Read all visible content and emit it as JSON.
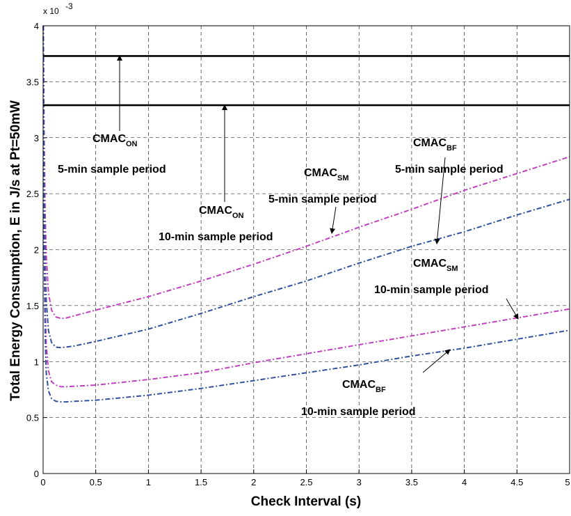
{
  "chart_data": {
    "type": "line",
    "title": "",
    "xlabel": "Check Interval (s)",
    "ylabel": "Total Energy Consumption, E in J/s at Pt=50mW",
    "y_multiplier": "x 10",
    "y_multiplier_exp": "-3",
    "xlim": [
      0,
      5
    ],
    "ylim": [
      0,
      4
    ],
    "grid": true,
    "x_ticks": [
      "0",
      "0.5",
      "1",
      "1.5",
      "2",
      "2.5",
      "3",
      "3.5",
      "4",
      "4.5",
      "5"
    ],
    "y_ticks": [
      "0",
      "0.5",
      "1",
      "1.5",
      "2",
      "2.5",
      "3",
      "3.5",
      "4"
    ],
    "series": [
      {
        "label": "CMAC_ON 5-min sample period",
        "color": "#000000",
        "style": "solid",
        "x": [
          0,
          5
        ],
        "y": [
          3.73,
          3.73
        ]
      },
      {
        "label": "CMAC_ON 10-min sample period",
        "color": "#000000",
        "style": "solid",
        "x": [
          0,
          5
        ],
        "y": [
          3.29,
          3.29
        ]
      },
      {
        "label": "CMAC_SM 5-min sample period",
        "color": "#c040c0",
        "style": "dashdot",
        "x": [
          0.002,
          0.01,
          0.02,
          0.03,
          0.05,
          0.08,
          0.12,
          0.17,
          0.22,
          0.3,
          0.5,
          1,
          1.5,
          2,
          2.5,
          3,
          3.5,
          4,
          4.5,
          5
        ],
        "y": [
          4.0,
          3.0,
          2.3,
          1.95,
          1.62,
          1.46,
          1.4,
          1.385,
          1.39,
          1.41,
          1.46,
          1.58,
          1.72,
          1.87,
          2.03,
          2.2,
          2.36,
          2.53,
          2.68,
          2.83
        ]
      },
      {
        "label": "CMAC_BF 5-min sample period",
        "color": "#3050a0",
        "style": "dashdot",
        "x": [
          0.002,
          0.01,
          0.02,
          0.03,
          0.05,
          0.08,
          0.12,
          0.17,
          0.22,
          0.3,
          0.5,
          1,
          1.5,
          2,
          2.5,
          3,
          3.5,
          4,
          4.5,
          5
        ],
        "y": [
          4.0,
          2.6,
          1.9,
          1.55,
          1.28,
          1.17,
          1.13,
          1.125,
          1.13,
          1.14,
          1.18,
          1.29,
          1.43,
          1.58,
          1.72,
          1.88,
          2.03,
          2.16,
          2.31,
          2.45
        ]
      },
      {
        "label": "CMAC_SM 10-min sample period",
        "color": "#c040c0",
        "style": "dashdot",
        "x": [
          0.002,
          0.01,
          0.02,
          0.03,
          0.05,
          0.08,
          0.12,
          0.17,
          0.22,
          0.3,
          0.5,
          1,
          1.5,
          2,
          2.5,
          3,
          3.5,
          4,
          4.5,
          5
        ],
        "y": [
          4.0,
          2.3,
          1.5,
          1.15,
          0.92,
          0.82,
          0.79,
          0.775,
          0.775,
          0.78,
          0.79,
          0.84,
          0.9,
          0.99,
          1.07,
          1.15,
          1.23,
          1.31,
          1.39,
          1.47
        ]
      },
      {
        "label": "CMAC_BF 10-min sample period",
        "color": "#3050a0",
        "style": "dashdot",
        "x": [
          0.002,
          0.01,
          0.02,
          0.03,
          0.05,
          0.08,
          0.12,
          0.17,
          0.22,
          0.3,
          0.5,
          1,
          1.5,
          2,
          2.5,
          3,
          3.5,
          4,
          4.5,
          5
        ],
        "y": [
          4.0,
          2.0,
          1.2,
          0.9,
          0.74,
          0.67,
          0.645,
          0.64,
          0.64,
          0.645,
          0.655,
          0.7,
          0.76,
          0.83,
          0.9,
          0.97,
          1.05,
          1.12,
          1.2,
          1.28
        ]
      }
    ],
    "annotations": [
      {
        "main": "CMAC",
        "sub": "ON",
        "line2": "5-min sample period"
      },
      {
        "main": "CMAC",
        "sub": "ON",
        "line2": "10-min sample period"
      },
      {
        "main": "CMAC",
        "sub": "SM",
        "line2": "5-min sample period"
      },
      {
        "main": "CMAC",
        "sub": "BF",
        "line2": "5-min sample period"
      },
      {
        "main": "CMAC",
        "sub": "SM",
        "line2": "10-min sample period"
      },
      {
        "main": "CMAC",
        "sub": "BF",
        "line2": "10-min sample period"
      }
    ]
  }
}
